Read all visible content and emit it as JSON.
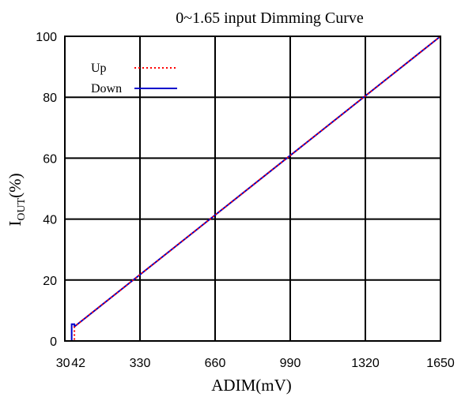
{
  "chart_data": {
    "type": "line",
    "title": "0~1.65 input Dimming Curve",
    "xlabel": "ADIM(mV)",
    "ylabel": {
      "main": "I",
      "sub": "OUT",
      "suffix": "(%)"
    },
    "xlim": [
      0,
      1650
    ],
    "ylim": [
      0,
      100
    ],
    "x_ticks": [
      30,
      42,
      330,
      660,
      990,
      1320,
      1650
    ],
    "x_grid": [
      330,
      660,
      990,
      1320,
      1650
    ],
    "y_ticks": [
      0,
      20,
      40,
      60,
      80,
      100
    ],
    "grid": true,
    "legend_position": "top-left",
    "series": [
      {
        "name": "Up",
        "color": "#ff0000",
        "style": "dotted",
        "points": [
          [
            30,
            0
          ],
          [
            42,
            0
          ],
          [
            42,
            4.7
          ],
          [
            1650,
            100
          ]
        ]
      },
      {
        "name": "Down",
        "color": "#0000cc",
        "style": "solid",
        "points": [
          [
            1650,
            100
          ],
          [
            42,
            4.7
          ],
          [
            42,
            5.5
          ],
          [
            30,
            5.5
          ],
          [
            30,
            0
          ],
          [
            0,
            0
          ]
        ]
      }
    ]
  }
}
